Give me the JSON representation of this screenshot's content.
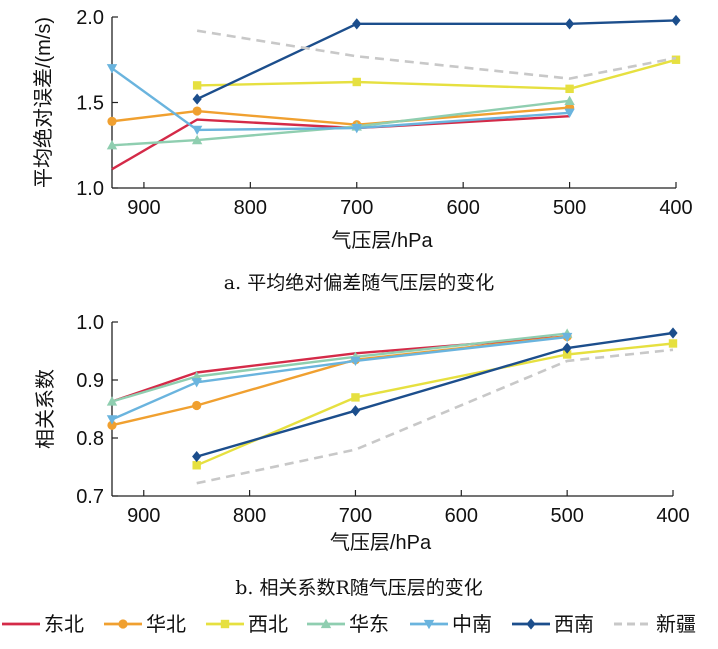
{
  "chart_data": [
    {
      "type": "line",
      "caption": "a. 平均绝对偏差随气压层的变化",
      "xlabel": "气压层/hPa",
      "ylabel": "平均绝对误差/(m/s)",
      "xlim": [
        930,
        400
      ],
      "ylim": [
        1.0,
        2.0
      ],
      "xticks": [
        "900",
        "800",
        "700",
        "600",
        "500",
        "400"
      ],
      "yticks": [
        "1.0",
        "1.5",
        "2.0"
      ],
      "series": [
        {
          "name": "东北",
          "x": [
            930,
            850,
            700,
            500
          ],
          "values": [
            1.11,
            1.4,
            1.35,
            1.42
          ]
        },
        {
          "name": "华北",
          "x": [
            930,
            850,
            700,
            500
          ],
          "values": [
            1.39,
            1.45,
            1.37,
            1.47
          ]
        },
        {
          "name": "西北",
          "x": [
            850,
            700,
            500,
            400
          ],
          "values": [
            1.6,
            1.62,
            1.58,
            1.75
          ]
        },
        {
          "name": "华东",
          "x": [
            930,
            850,
            700,
            500
          ],
          "values": [
            1.25,
            1.28,
            1.36,
            1.51
          ]
        },
        {
          "name": "中南",
          "x": [
            930,
            850,
            700,
            500
          ],
          "values": [
            1.7,
            1.34,
            1.35,
            1.44
          ]
        },
        {
          "name": "西南",
          "x": [
            850,
            700,
            500,
            400
          ],
          "values": [
            1.52,
            1.96,
            1.96,
            1.98
          ]
        },
        {
          "name": "新疆",
          "x": [
            850,
            700,
            500,
            400
          ],
          "values": [
            1.92,
            1.77,
            1.64,
            1.76
          ]
        }
      ]
    },
    {
      "type": "line",
      "caption": "b. 相关系数R随气压层的变化",
      "xlabel": "气压层/hPa",
      "ylabel": "相关系数",
      "xlim": [
        930,
        400
      ],
      "ylim": [
        0.7,
        1.0
      ],
      "xticks": [
        "900",
        "800",
        "700",
        "600",
        "500",
        "400"
      ],
      "yticks": [
        "0.7",
        "0.8",
        "0.9",
        "1.0"
      ],
      "series": [
        {
          "name": "东北",
          "x": [
            930,
            850,
            700,
            500
          ],
          "values": [
            0.863,
            0.913,
            0.946,
            0.975
          ]
        },
        {
          "name": "华北",
          "x": [
            930,
            850,
            700,
            500
          ],
          "values": [
            0.822,
            0.856,
            0.935,
            0.975
          ]
        },
        {
          "name": "西北",
          "x": [
            850,
            700,
            500,
            400
          ],
          "values": [
            0.753,
            0.87,
            0.944,
            0.963
          ]
        },
        {
          "name": "华东",
          "x": [
            930,
            850,
            700,
            500
          ],
          "values": [
            0.863,
            0.906,
            0.94,
            0.98
          ]
        },
        {
          "name": "中南",
          "x": [
            930,
            850,
            700,
            500
          ],
          "values": [
            0.832,
            0.896,
            0.933,
            0.974
          ]
        },
        {
          "name": "西南",
          "x": [
            850,
            700,
            500,
            400
          ],
          "values": [
            0.768,
            0.847,
            0.955,
            0.981
          ]
        },
        {
          "name": "新疆",
          "x": [
            850,
            700,
            500,
            400
          ],
          "values": [
            0.722,
            0.78,
            0.933,
            0.952
          ]
        }
      ]
    }
  ],
  "styles": [
    {
      "color": "#d42a48",
      "marker": "none",
      "dash": false
    },
    {
      "color": "#f0a030",
      "marker": "circle",
      "dash": false
    },
    {
      "color": "#e6e040",
      "marker": "square",
      "dash": false
    },
    {
      "color": "#8fceb0",
      "marker": "triangle-up",
      "dash": false
    },
    {
      "color": "#6ab4de",
      "marker": "triangle-down",
      "dash": false
    },
    {
      "color": "#1c4e8c",
      "marker": "diamond",
      "dash": false
    },
    {
      "color": "#c8c8c8",
      "marker": "none",
      "dash": true
    }
  ]
}
